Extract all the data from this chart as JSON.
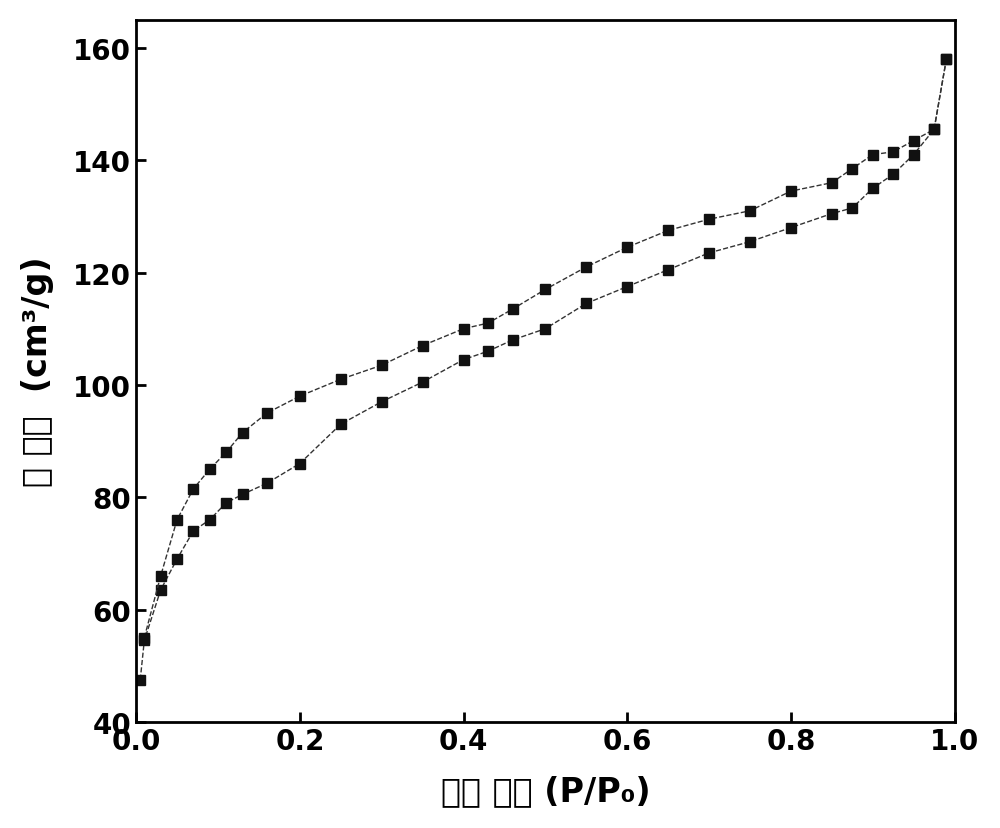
{
  "adsorption_x": [
    0.005,
    0.01,
    0.03,
    0.05,
    0.07,
    0.09,
    0.11,
    0.13,
    0.16,
    0.2,
    0.25,
    0.3,
    0.35,
    0.4,
    0.43,
    0.46,
    0.5,
    0.55,
    0.6,
    0.65,
    0.7,
    0.75,
    0.8,
    0.85,
    0.875,
    0.9,
    0.925,
    0.95,
    0.975,
    0.99
  ],
  "adsorption_y": [
    47.5,
    54.5,
    63.5,
    69.0,
    74.0,
    76.0,
    79.0,
    80.5,
    82.5,
    86.0,
    93.0,
    97.0,
    100.5,
    104.5,
    106.0,
    108.0,
    110.0,
    114.5,
    117.5,
    120.5,
    123.5,
    125.5,
    128.0,
    130.5,
    131.5,
    135.0,
    137.5,
    141.0,
    145.5,
    158.0
  ],
  "desorption_x": [
    0.99,
    0.975,
    0.95,
    0.925,
    0.9,
    0.875,
    0.85,
    0.8,
    0.75,
    0.7,
    0.65,
    0.6,
    0.55,
    0.5,
    0.46,
    0.43,
    0.4,
    0.35,
    0.3,
    0.25,
    0.2,
    0.16,
    0.13,
    0.11,
    0.09,
    0.07,
    0.05,
    0.03,
    0.01
  ],
  "desorption_y": [
    158.0,
    145.5,
    143.5,
    141.5,
    141.0,
    138.5,
    136.0,
    134.5,
    131.0,
    129.5,
    127.5,
    124.5,
    121.0,
    117.0,
    113.5,
    111.0,
    110.0,
    107.0,
    103.5,
    101.0,
    98.0,
    95.0,
    91.5,
    88.0,
    85.0,
    81.5,
    76.0,
    66.0,
    55.0
  ],
  "xlabel": "相对 压力 (P/P₀)",
  "ylabel": "孔 体积  (cm³/g)",
  "xlim": [
    0.0,
    1.0
  ],
  "ylim": [
    40,
    165
  ],
  "xticks": [
    0.0,
    0.2,
    0.4,
    0.6,
    0.8,
    1.0
  ],
  "yticks": [
    40,
    60,
    80,
    100,
    120,
    140,
    160
  ],
  "line_color": "#333333",
  "marker_color": "#111111",
  "marker": "s",
  "markersize": 7,
  "linewidth": 1.0,
  "background_color": "#ffffff",
  "xlabel_fontsize": 24,
  "ylabel_fontsize": 24,
  "tick_fontsize": 20,
  "tick_fontweight": "bold"
}
